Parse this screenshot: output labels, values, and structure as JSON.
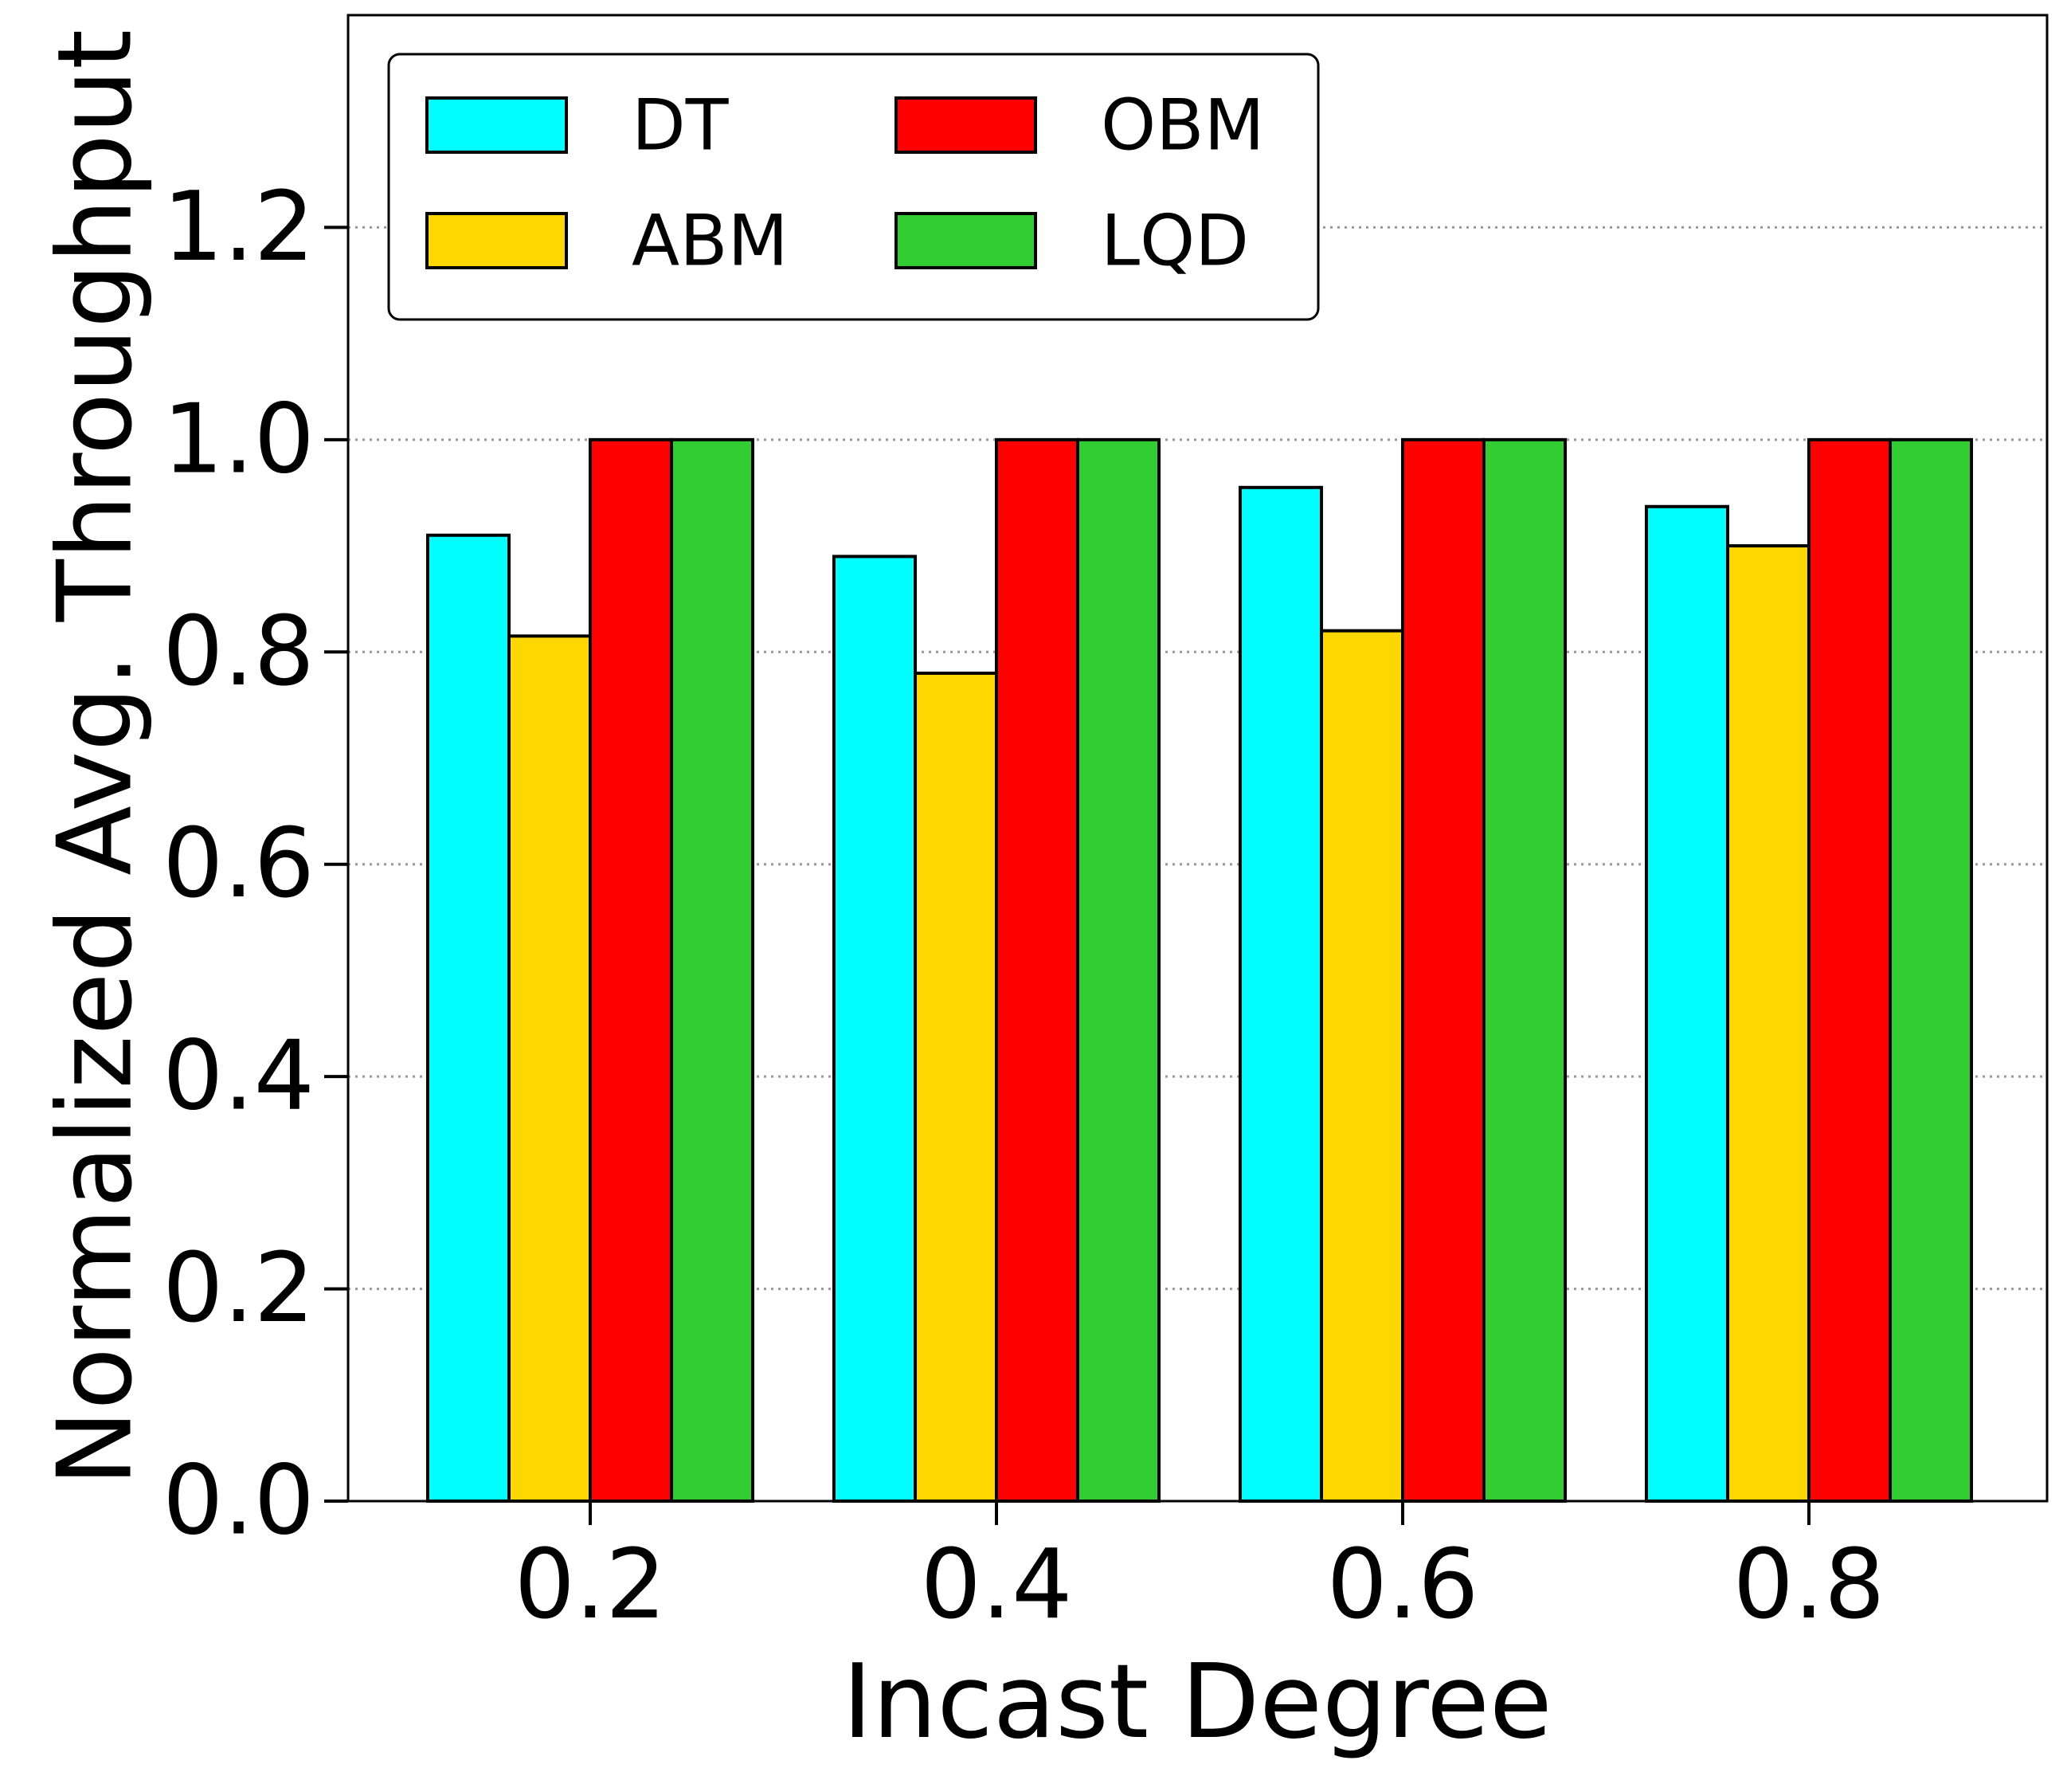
{
  "chart_data": {
    "type": "bar",
    "xlabel": "Incast Degree",
    "ylabel": "Normalized Avg. Throughput",
    "categories": [
      "0.2",
      "0.4",
      "0.6",
      "0.8"
    ],
    "series": [
      {
        "name": "DT",
        "color": "#00FFFF",
        "values": [
          0.91,
          0.89,
          0.955,
          0.937
        ]
      },
      {
        "name": "ABM",
        "color": "#FFD700",
        "values": [
          0.815,
          0.78,
          0.82,
          0.9
        ]
      },
      {
        "name": "OBM",
        "color": "#FF0000",
        "values": [
          1.0,
          1.0,
          1.0,
          1.0
        ]
      },
      {
        "name": "LQD",
        "color": "#32CD32",
        "values": [
          1.0,
          1.0,
          1.0,
          1.0
        ]
      }
    ],
    "ylim": [
      0,
      1.4
    ],
    "yticks": [
      "0.0",
      "0.2",
      "0.4",
      "0.6",
      "0.8",
      "1.0",
      "1.2"
    ],
    "grid": "horizontal-dotted",
    "legend_position": "top-left",
    "legend_columns": 2
  }
}
